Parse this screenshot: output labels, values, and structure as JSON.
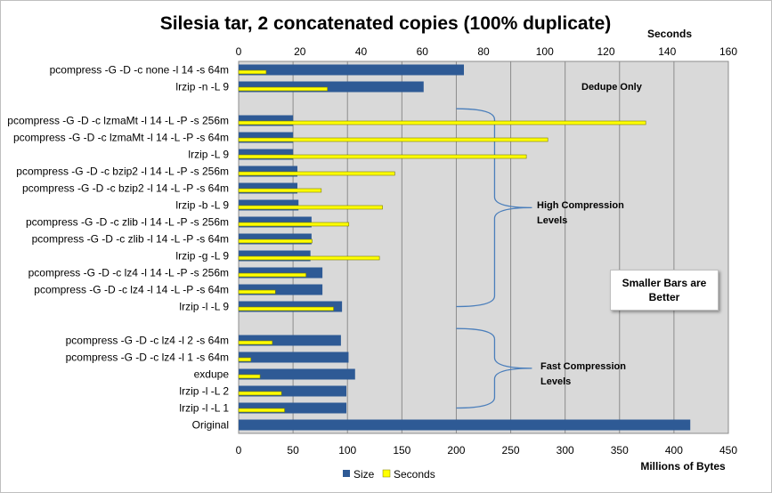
{
  "chart_data": {
    "type": "bar",
    "orientation": "horizontal",
    "title": "Silesia tar, 2 concatenated copies (100% duplicate)",
    "x_bottom_label": "Millions of Bytes",
    "x_top_label": "Seconds",
    "bottom_ticks": [
      0,
      50,
      100,
      150,
      200,
      250,
      300,
      350,
      400,
      450
    ],
    "top_ticks": [
      0,
      20,
      40,
      60,
      80,
      100,
      120,
      140,
      160
    ],
    "xlim_bytes": [
      0,
      450
    ],
    "xlim_seconds": [
      0,
      160
    ],
    "grid": "vertical gridlines",
    "plot_background": "#d9d9d9",
    "legend_position": "bottom",
    "categories": [
      "pcompress -G -D -c none -l 14 -s 64m",
      "lrzip -n -L 9",
      "",
      "pcompress -G -D -c lzmaMt -l 14 -L -P -s 256m",
      "pcompress -G -D -c lzmaMt -l 14 -L -P -s 64m",
      "lrzip  -L 9",
      "pcompress -G -D -c bzip2 -l 14 -L -P -s 256m",
      "pcompress -G -D -c bzip2 -l 14 -L -P -s 64m",
      "lrzip -b -L 9",
      "pcompress -G -D -c zlib -l 14 -L -P -s 256m",
      "pcompress -G -D -c zlib -l 14 -L -P -s 64m",
      "lrzip -g -L 9",
      "pcompress -G -D -c lz4 -l 14 -L -P -s 256m",
      "pcompress -G -D -c lz4 -l 14 -L -P -s 64m",
      "lrzip -l -L 9",
      "",
      "pcompress -G -D -c lz4 -l 2 -s 64m",
      "pcompress -G -D -c lz4 -l 1 -s 64m",
      "exdupe",
      "lrzip -l -L 2",
      "lrzip -l -L 1",
      "Original"
    ],
    "series": [
      {
        "name": "Size",
        "axis": "bottom",
        "color": "#2e5a95",
        "values": [
          207,
          170,
          null,
          50,
          50,
          50,
          54,
          54,
          55,
          67,
          67,
          66,
          77,
          77,
          95,
          null,
          94,
          101,
          107,
          99,
          99,
          415
        ]
      },
      {
        "name": "Seconds",
        "axis": "top",
        "color": "#ffff00",
        "values": [
          9,
          29,
          null,
          133,
          101,
          94,
          51,
          27,
          47,
          36,
          24,
          46,
          22,
          12,
          31,
          null,
          11,
          4,
          7,
          14,
          15,
          null
        ]
      }
    ],
    "annotations": {
      "dedupe": "Dedupe Only",
      "high_line1": "High Compression",
      "high_line2": "Levels",
      "fast_line1": "Fast Compression",
      "fast_line2": "Levels",
      "note_line1": "Smaller Bars are",
      "note_line2": "Better"
    }
  }
}
